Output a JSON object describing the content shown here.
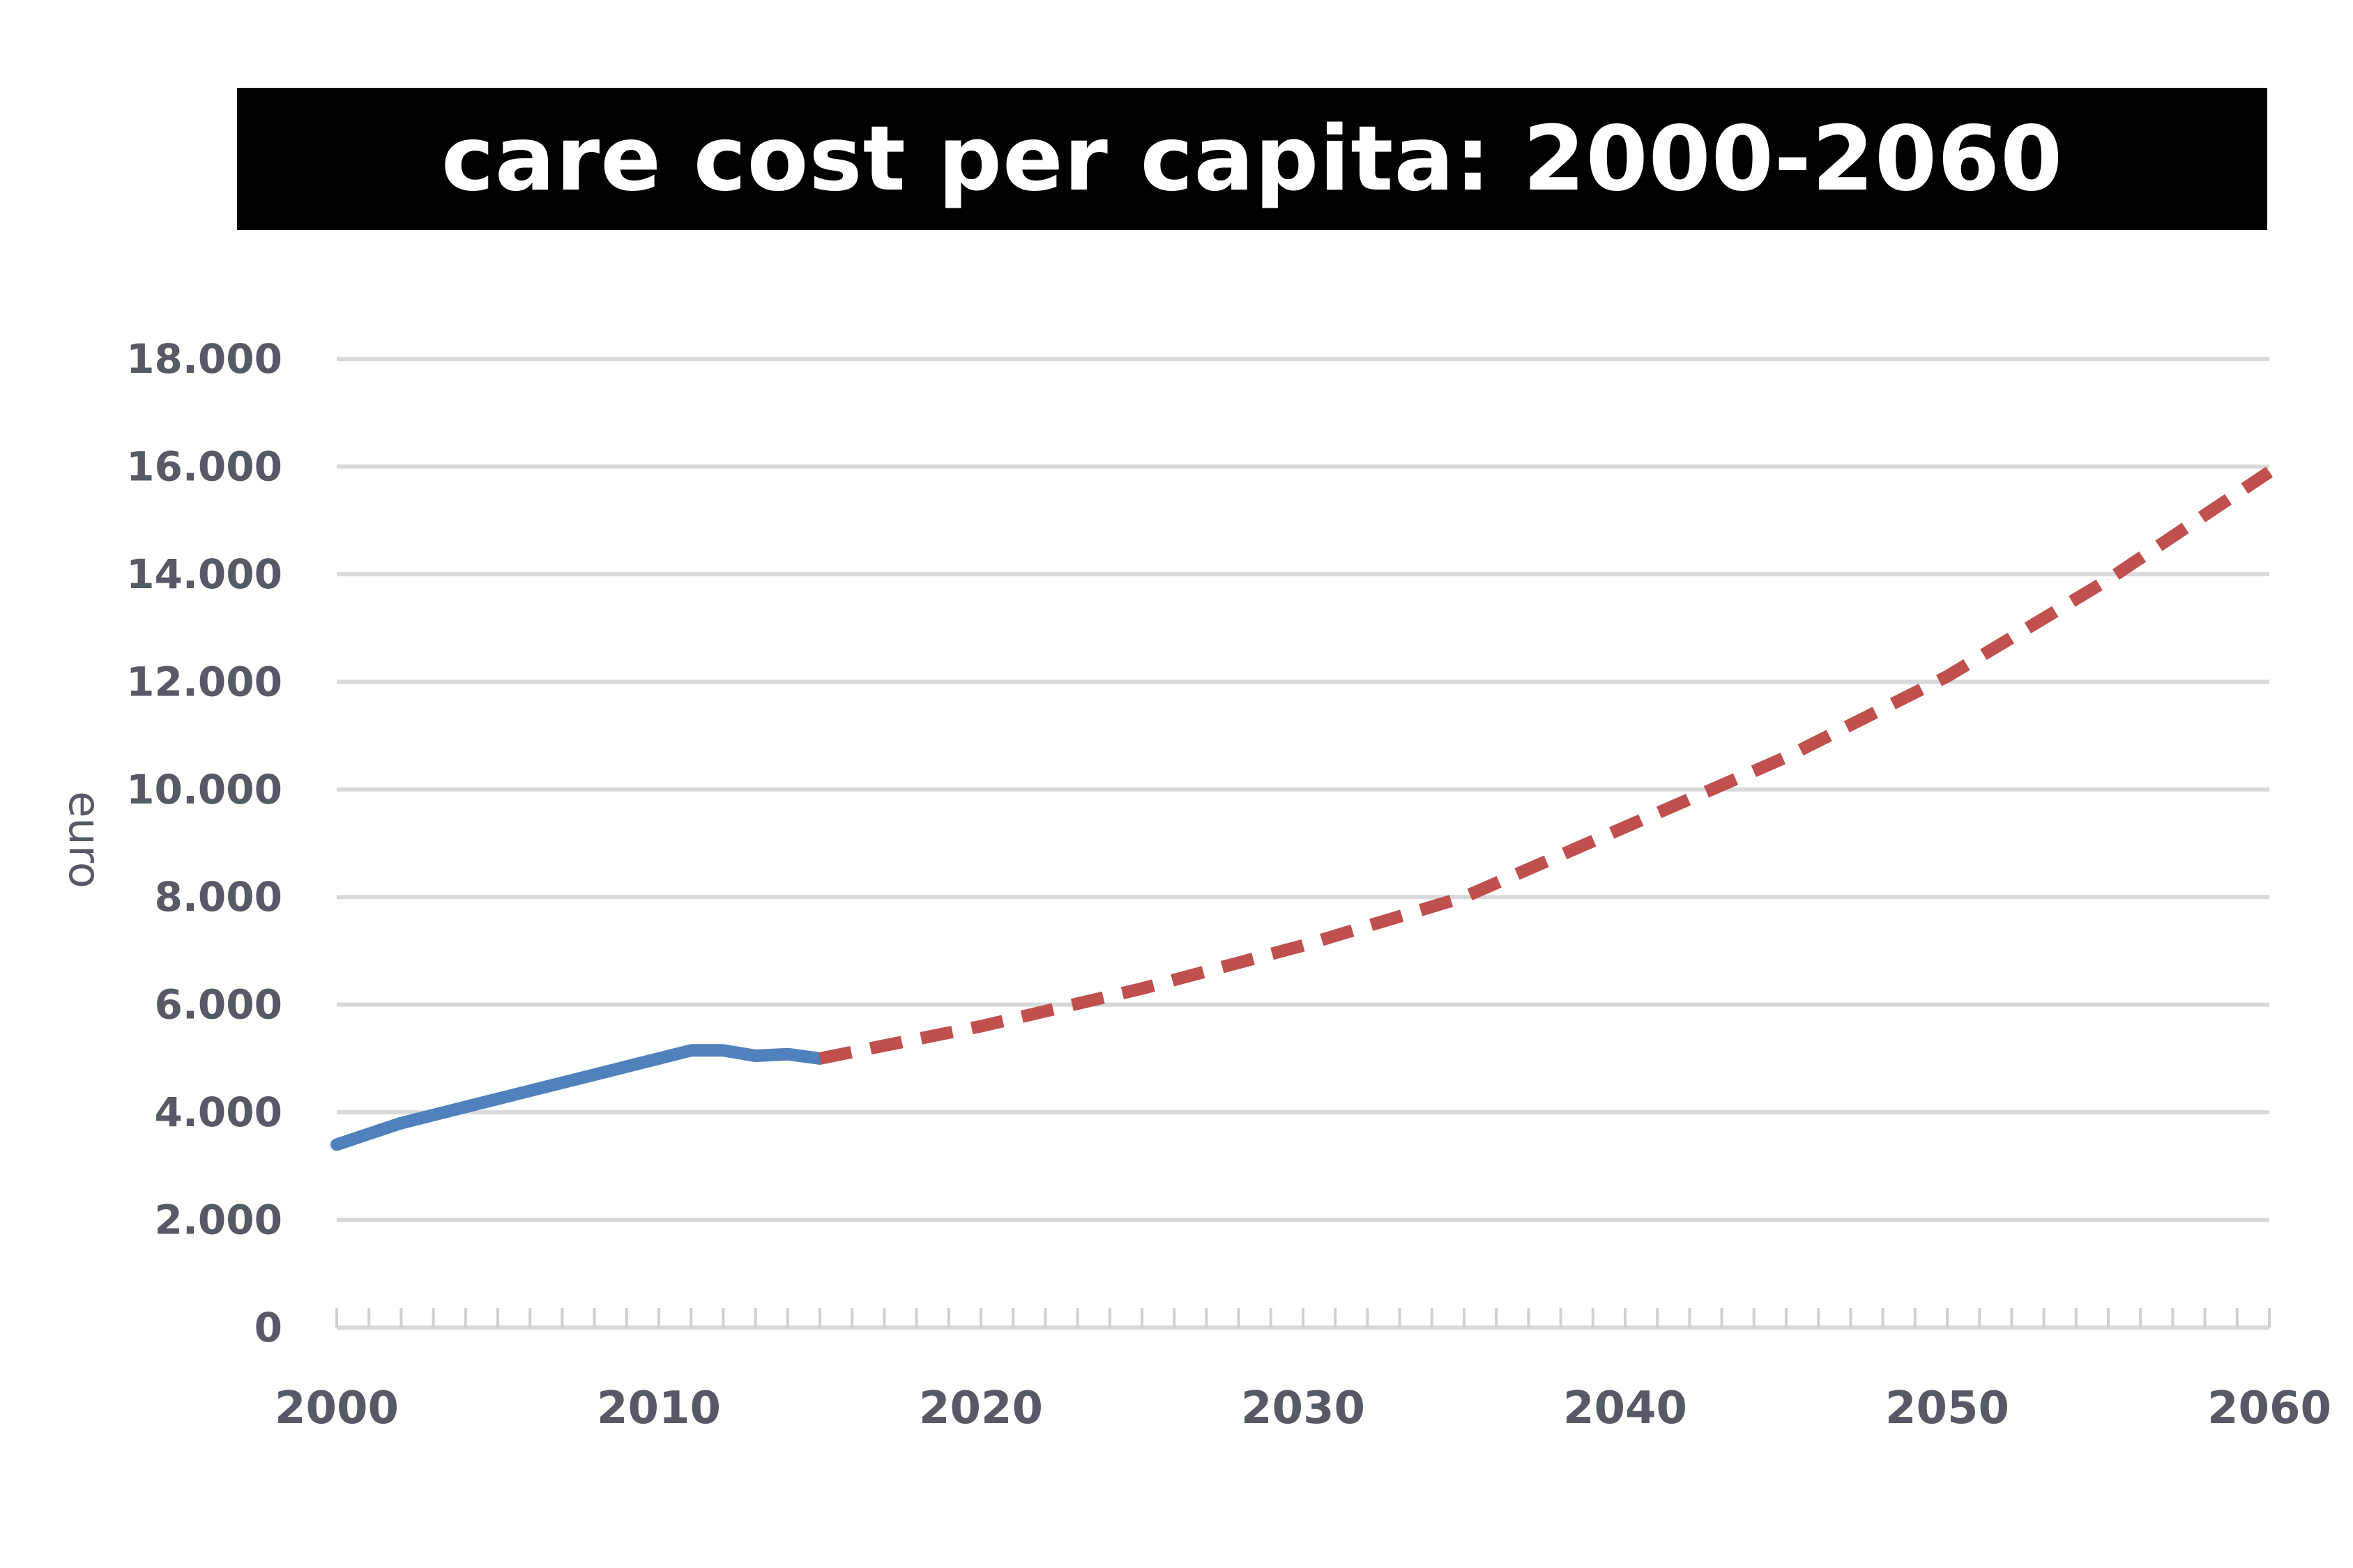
{
  "chart_data": {
    "type": "line",
    "title": "care cost per capita: 2000-2060",
    "xlabel": "",
    "ylabel": "euro",
    "xlim": [
      2000,
      2060
    ],
    "ylim": [
      0,
      18000
    ],
    "x_ticks": [
      "2000",
      "2010",
      "2020",
      "2030",
      "2040",
      "2050",
      "2060"
    ],
    "y_ticks": [
      "0",
      "2.000",
      "4.000",
      "6.000",
      "8.000",
      "10.000",
      "12.000",
      "14.000",
      "16.000",
      "18.000"
    ],
    "grid": true,
    "series": [
      {
        "style": "solid",
        "color": "#4f81bd",
        "x": [
          2000,
          2002,
          2004,
          2006,
          2008,
          2010,
          2011,
          2012,
          2013,
          2014,
          2015
        ],
        "values": [
          3400,
          3800,
          4100,
          4400,
          4700,
          5000,
          5150,
          5150,
          5050,
          5080,
          5000
        ]
      },
      {
        "style": "dashed",
        "color": "#c0504d",
        "x": [
          2015,
          2020,
          2025,
          2030,
          2035,
          2040,
          2045,
          2050,
          2055,
          2060
        ],
        "values": [
          5000,
          5600,
          6300,
          7100,
          8000,
          9300,
          10600,
          12100,
          13900,
          15900
        ]
      }
    ]
  }
}
